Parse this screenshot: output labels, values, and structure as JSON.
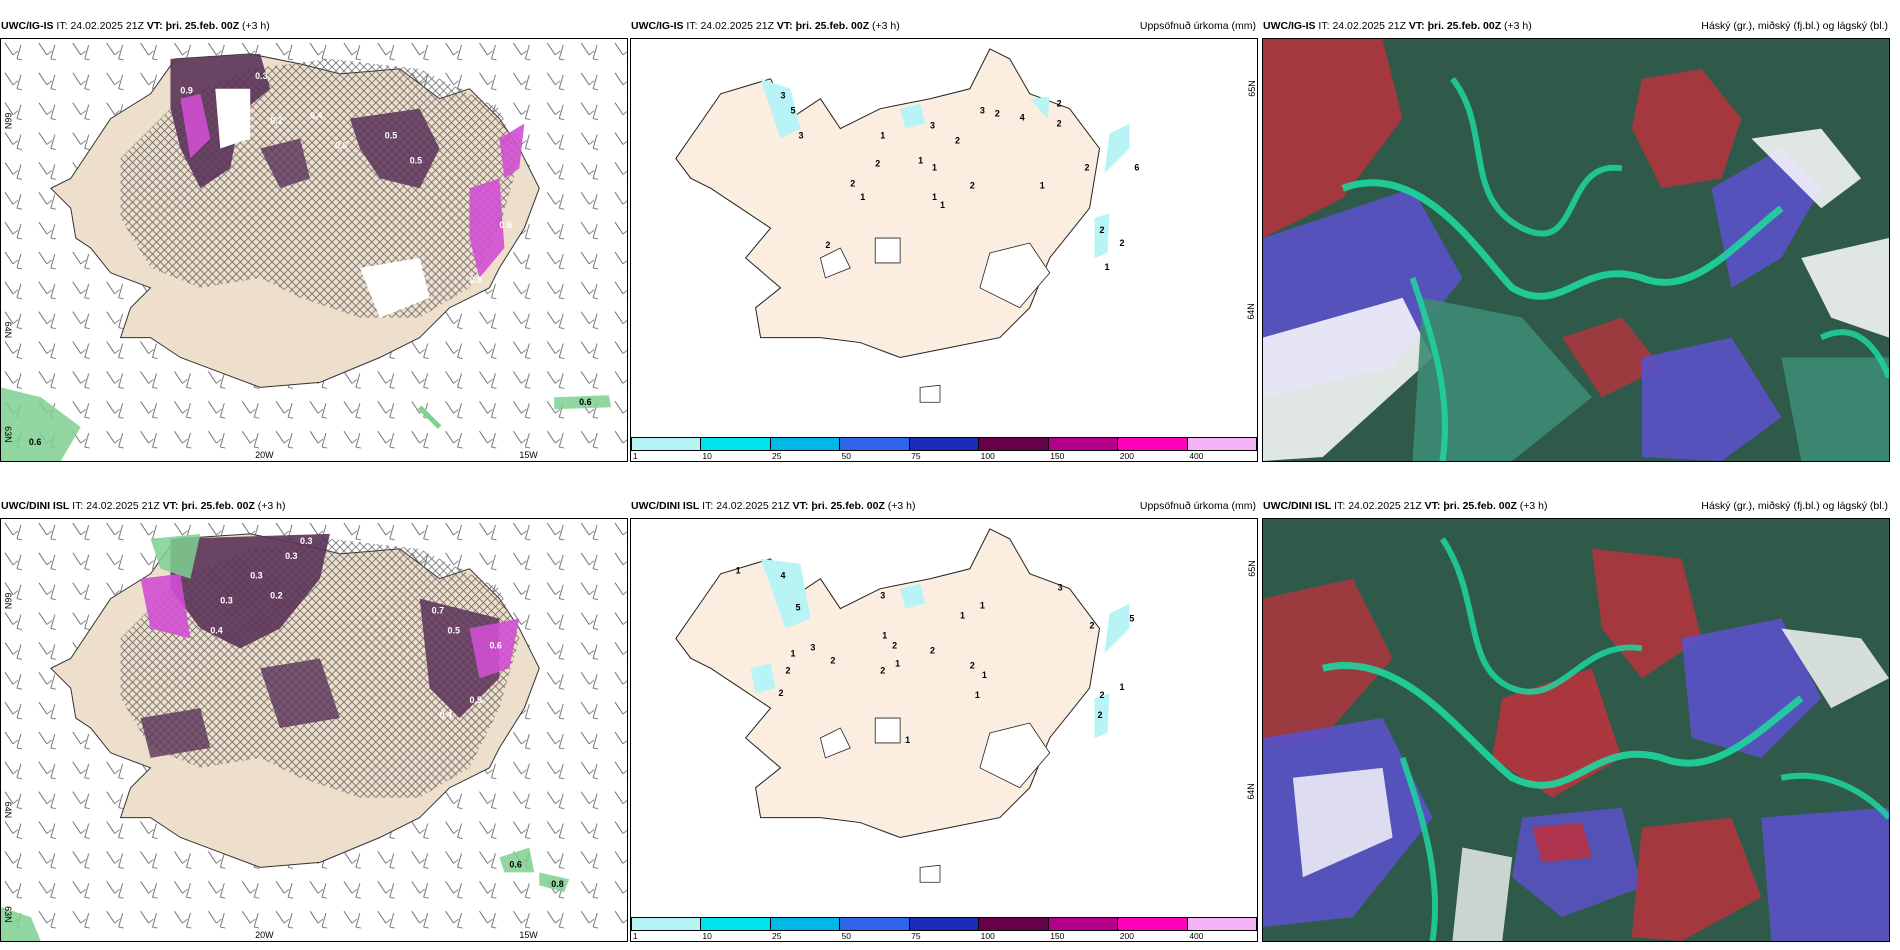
{
  "rows": [
    {
      "model": "UWC/IG-IS",
      "it_label": "IT:",
      "it_value": "24.02.2025 21Z",
      "vt_label": "VT:",
      "vt_value": "þri. 25.feb. 00Z",
      "lead": "(+3 h)",
      "left_map": {
        "lon_labels": [
          "20W",
          "15W"
        ],
        "lat_labels": [
          "66N",
          "64N",
          "63N"
        ],
        "values": [
          "0.3",
          "0.9",
          "0.2",
          "0.5",
          "0.5",
          "0.4",
          "0.6",
          "0.6",
          "0.8"
        ],
        "green_values": [
          "0.6",
          "0.6"
        ]
      },
      "mid_map": {
        "title": "Uppsöfnuð úrkoma (mm)",
        "lat_labels": [
          "65N",
          "64N"
        ],
        "values": [
          "3",
          "5",
          "3",
          "1",
          "3",
          "2",
          "3",
          "2",
          "4",
          "2",
          "2",
          "1",
          "1",
          "2",
          "2",
          "6",
          "1",
          "1",
          "2",
          "1",
          "1",
          "2",
          "2",
          "2",
          "2",
          "1"
        ]
      },
      "right_map": {
        "title": "Háský (gr.), miðský (fj.bl.) og lágský (bl.)"
      }
    },
    {
      "model": "UWC/DINI ISL",
      "it_label": "IT:",
      "it_value": "24.02.2025 21Z",
      "vt_label": "VT:",
      "vt_value": "þri. 25.feb. 00Z",
      "lead": "(+3 h)",
      "left_map": {
        "lon_labels": [
          "20W",
          "15W"
        ],
        "lat_labels": [
          "66N",
          "64N",
          "63N"
        ],
        "values": [
          "0.3",
          "0.3",
          "0.3",
          "0.2",
          "0.4",
          "0.3",
          "0.5",
          "0.7",
          "0.6",
          "0.5",
          "0.4"
        ],
        "green_values": [
          "0.6",
          "0.8"
        ]
      },
      "mid_map": {
        "title": "Uppsöfnuð úrkoma (mm)",
        "lat_labels": [
          "65N",
          "64N"
        ],
        "values": [
          "1",
          "4",
          "5",
          "3",
          "2",
          "1",
          "2",
          "2",
          "3",
          "1",
          "2",
          "2",
          "3",
          "1",
          "1",
          "2",
          "1",
          "2",
          "2",
          "1",
          "1",
          "5",
          "2",
          "1",
          "2",
          "1"
        ]
      },
      "right_map": {
        "title": "Háský (gr.), miðský (fj.bl.) og lágský (bl.)"
      }
    }
  ],
  "colorbar": {
    "colors": [
      "#b8f4f5",
      "#00e3ee",
      "#00b8e6",
      "#2f64e8",
      "#1c2cb8",
      "#6a0047",
      "#b2008a",
      "#ff00bf",
      "#f3b3f5"
    ],
    "ticks": [
      "1",
      "10",
      "25",
      "50",
      "75",
      "100",
      "150",
      "200",
      "400"
    ]
  },
  "palette": {
    "land": "#eedfcd",
    "land_mid": "#fbeee0",
    "purple_dark": "#5a3358",
    "magenta": "#d04fd3",
    "green": "#7fd091",
    "cloud_dark": "#2f5a4a",
    "cloud_teal": "#1fd6a0",
    "cloud_red": "#c0303c",
    "cloud_blue": "#5a52c8"
  }
}
